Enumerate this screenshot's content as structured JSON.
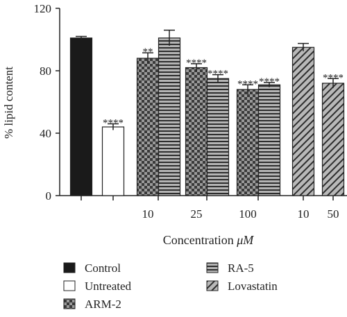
{
  "chart_data": {
    "type": "bar",
    "xlabel_prefix": "Concentration ",
    "xlabel_unit": "μM",
    "ylabel": "% lipid content",
    "ylim": [
      0,
      120
    ],
    "yticks": [
      0,
      40,
      80,
      120
    ],
    "bars": [
      {
        "group": "Control",
        "conc": "",
        "value": 101,
        "err": 1,
        "sig": ""
      },
      {
        "group": "Untreated",
        "conc": "",
        "value": 44,
        "err": 2,
        "sig": "****"
      },
      {
        "group": "ARM-2",
        "conc": "10",
        "value": 88,
        "err": 3.5,
        "sig": "**"
      },
      {
        "group": "RA-5",
        "conc": "",
        "value": 101,
        "err": 5,
        "sig": ""
      },
      {
        "group": "ARM-2",
        "conc": "25",
        "value": 82,
        "err": 2.5,
        "sig": "****"
      },
      {
        "group": "RA-5",
        "conc": "",
        "value": 75,
        "err": 2.5,
        "sig": "****"
      },
      {
        "group": "ARM-2",
        "conc": "100",
        "value": 68,
        "err": 3,
        "sig": "****"
      },
      {
        "group": "RA-5",
        "conc": "",
        "value": 71,
        "err": 1.5,
        "sig": "****"
      },
      {
        "group": "Lovastatin",
        "conc": "10",
        "value": 95,
        "err": 2.5,
        "sig": ""
      },
      {
        "group": "Lovastatin",
        "conc": "50",
        "value": 72,
        "err": 3,
        "sig": "****"
      }
    ],
    "legend": [
      {
        "name": "Control",
        "pattern": "solid"
      },
      {
        "name": "Untreated",
        "pattern": "empty"
      },
      {
        "name": "ARM-2",
        "pattern": "checker"
      },
      {
        "name": "RA-5",
        "pattern": "hlines"
      },
      {
        "name": "Lovastatin",
        "pattern": "diag"
      }
    ]
  }
}
